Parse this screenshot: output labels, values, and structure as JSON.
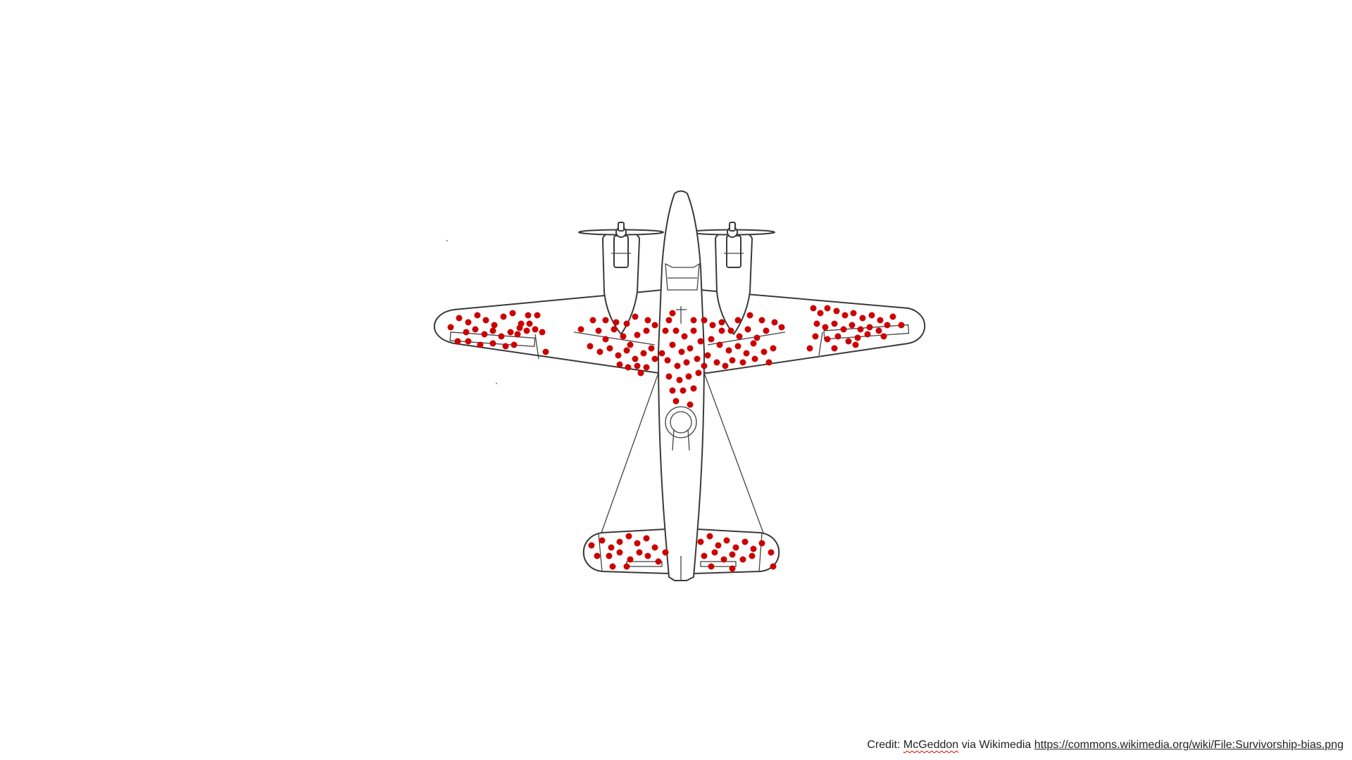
{
  "diagram": {
    "hit_color": "#cc0000",
    "line_color": "#3a3a3a"
  },
  "credit": {
    "prefix": "Credit: ",
    "author": "McGeddon",
    "middle": " via Wikimedia ",
    "url": "https://commons.wikimedia.org/wiki/File:Survivorship-bias.png"
  }
}
